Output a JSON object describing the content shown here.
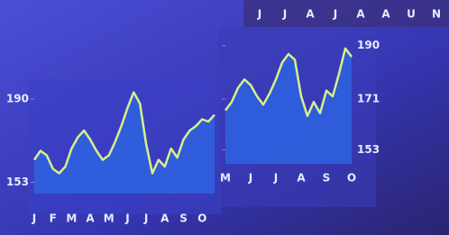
{
  "chart_data": [
    {
      "type": "line",
      "categories": [
        "J",
        null,
        null,
        "F",
        null,
        null,
        "M",
        null,
        null,
        "A",
        null,
        null,
        "M",
        null,
        null,
        "J",
        null,
        null,
        "J",
        null,
        null,
        "A",
        null,
        null,
        "S",
        null,
        null,
        "O",
        null,
        null
      ],
      "values": [
        163,
        167,
        165,
        159,
        157,
        160,
        168,
        173,
        176,
        172,
        167,
        163,
        165,
        171,
        178,
        186,
        193,
        188,
        170,
        157,
        163,
        160,
        168,
        164,
        172,
        176,
        178,
        181,
        180,
        183
      ],
      "color": "#d6f08a",
      "ylim": [
        148,
        196
      ],
      "yticks": [
        153,
        190
      ]
    },
    {
      "type": "line",
      "categories": [
        "M",
        null,
        null,
        null,
        "J",
        null,
        null,
        null,
        "J",
        null,
        null,
        null,
        "A",
        null,
        null,
        null,
        "S",
        null,
        null,
        null,
        "O"
      ],
      "values": [
        167,
        170,
        175,
        178,
        176,
        172,
        169,
        173,
        178,
        184,
        187,
        185,
        172,
        165,
        170,
        166,
        174,
        172,
        180,
        189,
        186
      ],
      "color": "#d6f08a",
      "ylim": [
        148,
        195
      ],
      "yticks": [
        153,
        171,
        190
      ]
    }
  ],
  "header_strip": [
    "J",
    "J",
    "A",
    "J",
    "A",
    "A",
    "U",
    "N"
  ]
}
